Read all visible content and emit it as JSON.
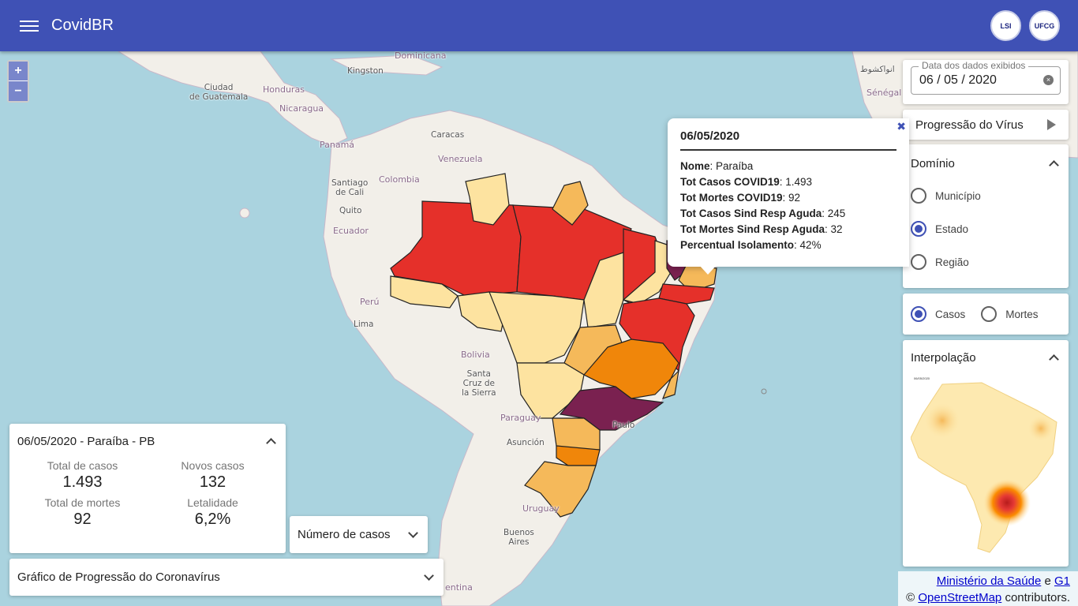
{
  "app": {
    "title": "CovidBR",
    "logos": [
      "LSI",
      "UFCG"
    ]
  },
  "zoom": {
    "in": "+",
    "out": "−"
  },
  "map_labels": [
    {
      "text": "Dominicana",
      "cls": "country"
    },
    {
      "text": "Kingston",
      "cls": ""
    },
    {
      "text": "Ciudad\nde Guatemala",
      "cls": ""
    },
    {
      "text": "Honduras",
      "cls": "country"
    },
    {
      "text": "Nicaragua",
      "cls": "country"
    },
    {
      "text": "Panamá",
      "cls": "country"
    },
    {
      "text": "Caracas",
      "cls": ""
    },
    {
      "text": "Venezuela",
      "cls": "country"
    },
    {
      "text": "Colombia",
      "cls": "country"
    },
    {
      "text": "Santiago\nde Cali",
      "cls": ""
    },
    {
      "text": "Quito",
      "cls": ""
    },
    {
      "text": "Ecuador",
      "cls": "country"
    },
    {
      "text": "Perú",
      "cls": "country"
    },
    {
      "text": "Lima",
      "cls": ""
    },
    {
      "text": "Bolivia",
      "cls": "country"
    },
    {
      "text": "Santa\nCruz de\nla Sierra",
      "cls": ""
    },
    {
      "text": "Paraguay",
      "cls": "country"
    },
    {
      "text": "Asunción",
      "cls": ""
    },
    {
      "text": "Uruguay",
      "cls": "country"
    },
    {
      "text": "Buenos\nAires",
      "cls": ""
    },
    {
      "text": "Paulo",
      "cls": ""
    },
    {
      "text": "Sénégal",
      "cls": "country"
    },
    {
      "text": "انواكشوط",
      "cls": ""
    },
    {
      "text": "entina",
      "cls": "country"
    }
  ],
  "popup": {
    "close": "✖",
    "date": "06/05/2020",
    "rows": [
      {
        "k": "Nome",
        "v": ": Paraíba"
      },
      {
        "k": "Tot Casos COVID19",
        "v": ": 1.493"
      },
      {
        "k": "Tot Mortes COVID19",
        "v": ": 92"
      },
      {
        "k": "Tot Casos Sind Resp Aguda",
        "v": ": 245"
      },
      {
        "k": "Tot Mortes Sind Resp Aguda",
        "v": ": 32"
      },
      {
        "k": "Percentual Isolamento",
        "v": ": 42%"
      }
    ]
  },
  "date_picker": {
    "label": "Data dos dados exibidos",
    "value": "06 / 05 / 2020",
    "clear": "×"
  },
  "progression": {
    "label": "Progressão do Vírus"
  },
  "domain": {
    "title": "Domínio",
    "options": [
      {
        "label": "Município",
        "selected": false
      },
      {
        "label": "Estado",
        "selected": true
      },
      {
        "label": "Região",
        "selected": false
      }
    ]
  },
  "metric": {
    "options": [
      {
        "label": "Casos",
        "selected": true
      },
      {
        "label": "Mortes",
        "selected": false
      }
    ]
  },
  "interpolation": {
    "title": "Interpolação",
    "image_date": "06/05/2020"
  },
  "attribution": {
    "source1": "Ministério da Saúde",
    "and": "e",
    "source2": "G1",
    "copy": "©",
    "osm": "OpenStreetMap",
    "contrib": "contributors."
  },
  "info": {
    "title": "06/05/2020 - Paraíba - PB",
    "stats": [
      {
        "label": "Total de casos",
        "value": "1.493"
      },
      {
        "label": "Novos casos",
        "value": "132"
      },
      {
        "label": "Total de mortes",
        "value": "92"
      },
      {
        "label": "Letalidade",
        "value": "6,2%"
      }
    ]
  },
  "case_select": {
    "label": "Número de casos"
  },
  "chart_toggle": {
    "label": "Gráfico de Progressão do Coronavírus"
  },
  "choropleth_colors": {
    "very_high": "#e5302a",
    "high": "#f0860a",
    "medium": "#f5b95a",
    "low": "#fde3a0",
    "extreme": "#7a2150"
  }
}
